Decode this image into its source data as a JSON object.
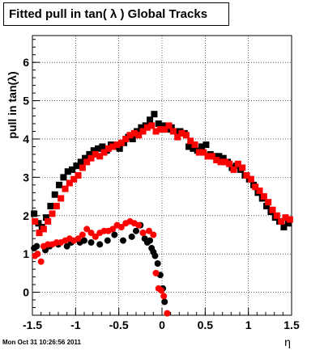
{
  "timestamp": "Mon Oct 31 10:26:56 2011",
  "chart_data": {
    "type": "scatter",
    "title": "Fitted pull in tan( λ )  Global Tracks",
    "xlabel": "η",
    "ylabel": "pull in tan(λ)",
    "xlim": [
      -1.5,
      1.5
    ],
    "ylim": [
      -0.6,
      6.7
    ],
    "grid": true,
    "x_ticks": [
      -1.5,
      -1,
      -0.5,
      0,
      0.5,
      1,
      1.5
    ],
    "x_tick_labels": [
      "-1.5",
      "-1",
      "-0.5",
      "0",
      "0.5",
      "1",
      "1.5"
    ],
    "y_ticks": [
      0,
      1,
      2,
      3,
      4,
      5,
      6
    ],
    "y_tick_labels": [
      "0",
      "1",
      "2",
      "3",
      "4",
      "5",
      "6"
    ],
    "colors": {
      "series_a": "#000000",
      "series_b": "#ff0000"
    },
    "series": [
      {
        "marker": "square",
        "color": "#000000",
        "x": [
          -1.48,
          -1.43,
          -1.39,
          -1.34,
          -1.29,
          -1.24,
          -1.19,
          -1.14,
          -1.09,
          -1.04,
          -0.99,
          -0.94,
          -0.89,
          -0.84,
          -0.79,
          -0.74,
          -0.69,
          -0.64,
          -0.59,
          -0.54,
          -0.49,
          -0.44,
          -0.39,
          -0.34,
          -0.29,
          -0.24,
          -0.19,
          -0.14,
          -0.09,
          -0.04,
          0.01,
          0.06,
          0.11,
          0.16,
          0.21,
          0.26,
          0.31,
          0.36,
          0.41,
          0.46,
          0.51,
          0.56,
          0.61,
          0.66,
          0.71,
          0.76,
          0.81,
          0.86,
          0.91,
          0.96,
          1.01,
          1.06,
          1.11,
          1.16,
          1.21,
          1.26,
          1.31,
          1.36,
          1.41,
          1.46
        ],
        "y": [
          2.05,
          1.8,
          1.7,
          1.95,
          2.25,
          2.55,
          2.8,
          3.0,
          3.15,
          3.2,
          3.3,
          3.4,
          3.5,
          3.6,
          3.7,
          3.75,
          3.8,
          3.7,
          3.85,
          3.8,
          3.75,
          3.9,
          4.05,
          4.0,
          4.2,
          4.3,
          4.35,
          4.5,
          4.65,
          4.4,
          4.35,
          4.25,
          4.3,
          4.2,
          4.2,
          4.15,
          3.8,
          3.75,
          3.7,
          3.8,
          3.85,
          3.6,
          3.55,
          3.55,
          3.5,
          3.4,
          3.25,
          3.3,
          3.2,
          3.05,
          2.95,
          2.8,
          2.6,
          2.45,
          2.25,
          2.1,
          1.95,
          1.85,
          1.7,
          1.8
        ]
      },
      {
        "marker": "square",
        "color": "#ff0000",
        "x": [
          -1.47,
          -1.42,
          -1.37,
          -1.32,
          -1.27,
          -1.22,
          -1.17,
          -1.12,
          -1.07,
          -1.02,
          -0.97,
          -0.92,
          -0.87,
          -0.82,
          -0.77,
          -0.72,
          -0.67,
          -0.62,
          -0.57,
          -0.52,
          -0.47,
          -0.42,
          -0.37,
          -0.32,
          -0.27,
          -0.22,
          -0.17,
          -0.12,
          -0.07,
          -0.02,
          0.03,
          0.08,
          0.13,
          0.18,
          0.23,
          0.28,
          0.33,
          0.38,
          0.43,
          0.48,
          0.53,
          0.58,
          0.63,
          0.68,
          0.73,
          0.78,
          0.83,
          0.88,
          0.93,
          0.98,
          1.03,
          1.08,
          1.13,
          1.18,
          1.23,
          1.28,
          1.33,
          1.38,
          1.43,
          1.48
        ],
        "y": [
          1.85,
          1.55,
          1.65,
          1.85,
          2.05,
          2.25,
          2.45,
          2.7,
          2.85,
          2.95,
          3.05,
          3.25,
          3.4,
          3.5,
          3.6,
          3.55,
          3.65,
          3.75,
          3.8,
          3.85,
          3.9,
          4.0,
          4.1,
          4.15,
          4.1,
          4.2,
          4.3,
          4.35,
          4.2,
          4.25,
          4.25,
          4.35,
          4.2,
          4.05,
          4.15,
          4.1,
          3.95,
          3.85,
          3.65,
          3.65,
          3.55,
          3.55,
          3.45,
          3.4,
          3.4,
          3.35,
          3.2,
          3.35,
          3.25,
          3.05,
          2.95,
          2.75,
          2.65,
          2.5,
          2.35,
          2.15,
          2.0,
          1.85,
          1.95,
          1.9
        ]
      },
      {
        "marker": "circle",
        "color": "#000000",
        "x": [
          -1.48,
          -1.45,
          -1.35,
          -1.3,
          -1.2,
          -1.1,
          -1.05,
          -0.95,
          -0.9,
          -0.82,
          -0.72,
          -0.63,
          -0.55,
          -0.45,
          -0.35,
          -0.3,
          -0.25,
          -0.22,
          -0.2,
          -0.17,
          -0.14,
          -0.12,
          -0.1,
          -0.08,
          -0.05,
          -0.02,
          0.01,
          0.03
        ],
        "y": [
          1.15,
          1.2,
          1.1,
          1.2,
          1.25,
          1.2,
          1.3,
          1.3,
          1.35,
          1.3,
          1.25,
          1.35,
          1.5,
          1.35,
          1.45,
          1.6,
          1.75,
          1.55,
          1.4,
          1.3,
          1.35,
          1.15,
          1.05,
          0.95,
          0.75,
          0.45,
          0.1,
          -0.25
        ]
      },
      {
        "marker": "circle",
        "color": "#ff0000",
        "x": [
          -1.47,
          -1.44,
          -1.4,
          -1.37,
          -1.32,
          -1.27,
          -1.22,
          -1.17,
          -1.12,
          -1.07,
          -1.02,
          -0.97,
          -0.92,
          -0.87,
          -0.82,
          -0.77,
          -0.72,
          -0.67,
          -0.62,
          -0.57,
          -0.52,
          -0.47,
          -0.42,
          -0.37,
          -0.32,
          -0.27,
          -0.22,
          -0.15,
          -0.1,
          -0.07,
          -0.04,
          -0.01,
          0.02,
          0.06
        ],
        "y": [
          0.95,
          1.0,
          0.8,
          1.2,
          1.25,
          1.25,
          1.3,
          1.3,
          1.35,
          1.4,
          1.35,
          1.4,
          1.5,
          1.65,
          1.55,
          1.45,
          1.55,
          1.6,
          1.6,
          1.65,
          1.75,
          1.7,
          1.8,
          1.85,
          1.8,
          1.75,
          1.55,
          1.6,
          1.5,
          0.5,
          0.1,
          0.05,
          -0.1,
          -0.55
        ]
      }
    ]
  }
}
